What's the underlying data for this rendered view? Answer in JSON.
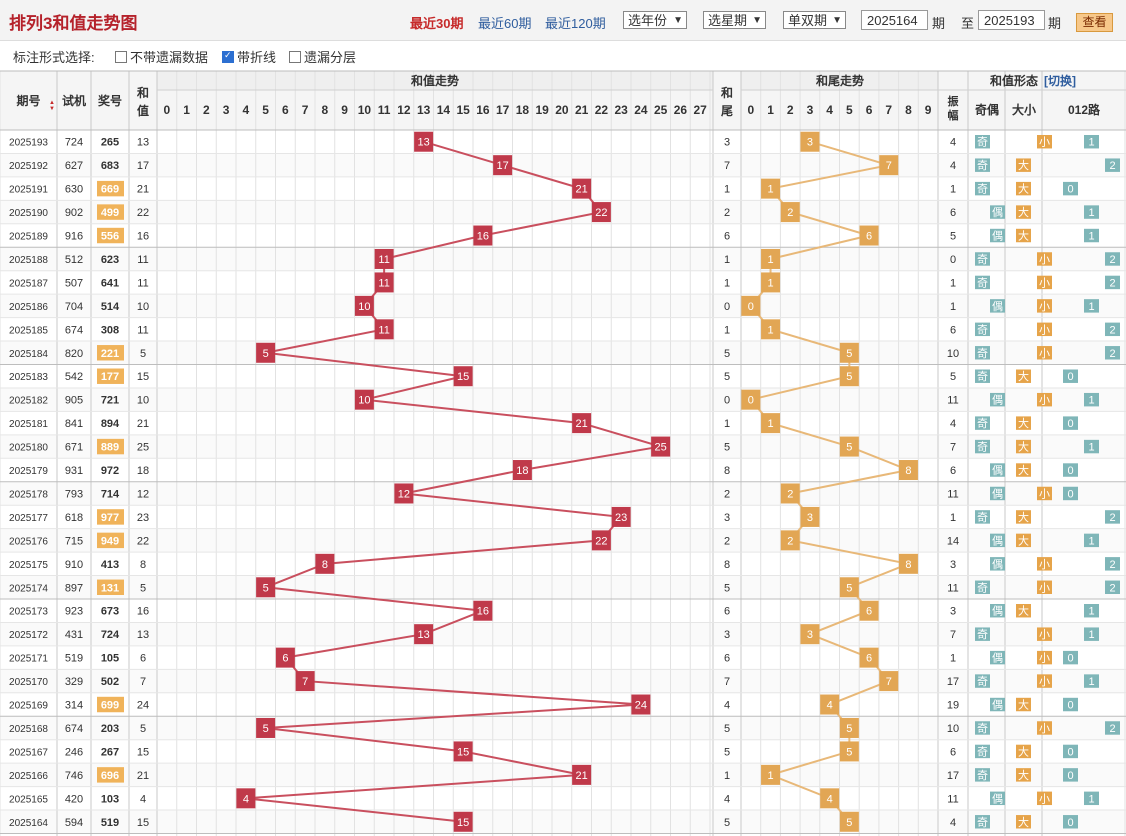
{
  "header": {
    "title": "排列3和值走势图",
    "period_links": [
      "最近30期",
      "最近60期",
      "最近120期"
    ],
    "selects": [
      "选年份",
      "选星期",
      "单双期"
    ],
    "from_value": "2025164",
    "from_label": "期",
    "to_label": "至",
    "to_value": "2025193",
    "to_suffix": "期",
    "view_button": "查看"
  },
  "options": {
    "label": "标注形式选择:",
    "items": [
      {
        "label": "不带遗漏数据",
        "checked": false
      },
      {
        "label": "带折线",
        "checked": true
      },
      {
        "label": "遗漏分层",
        "checked": false
      }
    ]
  },
  "table": {
    "h_issue": "期号",
    "h_trial": "试机",
    "h_prize": "奖号",
    "h_sum1": "和",
    "h_sum2": "值",
    "h_group_sum": "和值走势",
    "h_tail1": "和",
    "h_tail2": "尾",
    "h_group_tail": "和尾走势",
    "h_group_form": "和值形态",
    "h_switch": "[切换]",
    "h_amp1": "振",
    "h_amp2": "幅",
    "h_oddeven": "奇偶",
    "h_bigsmall": "大小",
    "h_012": "012路",
    "sum_cols": [
      "0",
      "1",
      "2",
      "3",
      "4",
      "5",
      "6",
      "7",
      "8",
      "9",
      "10",
      "11",
      "12",
      "13",
      "14",
      "15",
      "16",
      "17",
      "18",
      "19",
      "20",
      "21",
      "22",
      "23",
      "24",
      "25",
      "26",
      "27"
    ],
    "tail_cols": [
      "0",
      "1",
      "2",
      "3",
      "4",
      "5",
      "6",
      "7",
      "8",
      "9"
    ],
    "labels": {
      "odd": "奇",
      "even": "偶",
      "big": "大",
      "small": "小"
    }
  },
  "chart_data": {
    "type": "table",
    "title": "排列3和值走势图",
    "rows": [
      {
        "issue": "2025193",
        "trial": "724",
        "prize": "265",
        "sum": 13,
        "tail": 3,
        "amp": 4
      },
      {
        "issue": "2025192",
        "trial": "627",
        "prize": "683",
        "sum": 17,
        "tail": 7,
        "amp": 4
      },
      {
        "issue": "2025191",
        "trial": "630",
        "prize": "669",
        "sum": 21,
        "tail": 1,
        "amp": 1
      },
      {
        "issue": "2025190",
        "trial": "902",
        "prize": "499",
        "sum": 22,
        "tail": 2,
        "amp": 6
      },
      {
        "issue": "2025189",
        "trial": "916",
        "prize": "556",
        "sum": 16,
        "tail": 6,
        "amp": 5
      },
      {
        "issue": "2025188",
        "trial": "512",
        "prize": "623",
        "sum": 11,
        "tail": 1,
        "amp": 0
      },
      {
        "issue": "2025187",
        "trial": "507",
        "prize": "641",
        "sum": 11,
        "tail": 1,
        "amp": 1
      },
      {
        "issue": "2025186",
        "trial": "704",
        "prize": "514",
        "sum": 10,
        "tail": 0,
        "amp": 1
      },
      {
        "issue": "2025185",
        "trial": "674",
        "prize": "308",
        "sum": 11,
        "tail": 1,
        "amp": 6
      },
      {
        "issue": "2025184",
        "trial": "820",
        "prize": "221",
        "sum": 5,
        "tail": 5,
        "amp": 10
      },
      {
        "issue": "2025183",
        "trial": "542",
        "prize": "177",
        "sum": 15,
        "tail": 5,
        "amp": 5
      },
      {
        "issue": "2025182",
        "trial": "905",
        "prize": "721",
        "sum": 10,
        "tail": 0,
        "amp": 11
      },
      {
        "issue": "2025181",
        "trial": "841",
        "prize": "894",
        "sum": 21,
        "tail": 1,
        "amp": 4
      },
      {
        "issue": "2025180",
        "trial": "671",
        "prize": "889",
        "sum": 25,
        "tail": 5,
        "amp": 7
      },
      {
        "issue": "2025179",
        "trial": "931",
        "prize": "972",
        "sum": 18,
        "tail": 8,
        "amp": 6
      },
      {
        "issue": "2025178",
        "trial": "793",
        "prize": "714",
        "sum": 12,
        "tail": 2,
        "amp": 11
      },
      {
        "issue": "2025177",
        "trial": "618",
        "prize": "977",
        "sum": 23,
        "tail": 3,
        "amp": 1
      },
      {
        "issue": "2025176",
        "trial": "715",
        "prize": "949",
        "sum": 22,
        "tail": 2,
        "amp": 14
      },
      {
        "issue": "2025175",
        "trial": "910",
        "prize": "413",
        "sum": 8,
        "tail": 8,
        "amp": 3
      },
      {
        "issue": "2025174",
        "trial": "897",
        "prize": "131",
        "sum": 5,
        "tail": 5,
        "amp": 11
      },
      {
        "issue": "2025173",
        "trial": "923",
        "prize": "673",
        "sum": 16,
        "tail": 6,
        "amp": 3
      },
      {
        "issue": "2025172",
        "trial": "431",
        "prize": "724",
        "sum": 13,
        "tail": 3,
        "amp": 7
      },
      {
        "issue": "2025171",
        "trial": "519",
        "prize": "105",
        "sum": 6,
        "tail": 6,
        "amp": 1
      },
      {
        "issue": "2025170",
        "trial": "329",
        "prize": "502",
        "sum": 7,
        "tail": 7,
        "amp": 17
      },
      {
        "issue": "2025169",
        "trial": "314",
        "prize": "699",
        "sum": 24,
        "tail": 4,
        "amp": 19
      },
      {
        "issue": "2025168",
        "trial": "674",
        "prize": "203",
        "sum": 5,
        "tail": 5,
        "amp": 10
      },
      {
        "issue": "2025167",
        "trial": "246",
        "prize": "267",
        "sum": 15,
        "tail": 5,
        "amp": 6
      },
      {
        "issue": "2025166",
        "trial": "746",
        "prize": "696",
        "sum": 21,
        "tail": 1,
        "amp": 17
      },
      {
        "issue": "2025165",
        "trial": "420",
        "prize": "103",
        "sum": 4,
        "tail": 4,
        "amp": 11
      },
      {
        "issue": "2025164",
        "trial": "594",
        "prize": "519",
        "sum": 15,
        "tail": 5,
        "amp": 4
      }
    ]
  }
}
